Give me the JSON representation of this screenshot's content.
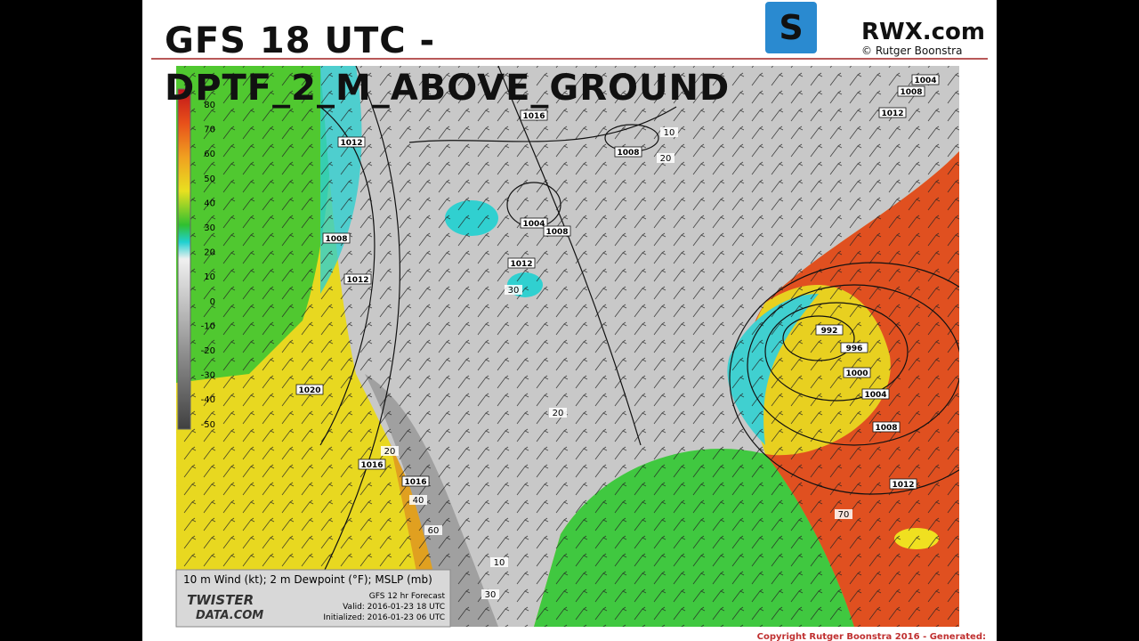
{
  "header": {
    "title_line1": "GFS 18 UTC -",
    "title_line2": "DPTF_2_M_ABOVE_GROUND",
    "logo_text": "RWX.com",
    "logo_credit": "© Rutger Boonstra"
  },
  "map": {
    "colorbar_labels": [
      "80",
      "70",
      "60",
      "50",
      "40",
      "30",
      "20",
      "10",
      "0",
      "-10",
      "-20",
      "-30",
      "-40",
      "-50"
    ],
    "isobar_labels": [
      "1016",
      "1012",
      "1008",
      "1012",
      "1004",
      "1008",
      "1012",
      "1008",
      "1004",
      "1008",
      "1012",
      "992",
      "996",
      "1000",
      "1004",
      "1008",
      "1012",
      "1020",
      "1016",
      "1016"
    ],
    "dewpoint_labels": [
      "30",
      "20",
      "20",
      "40",
      "60",
      "10",
      "30",
      "70",
      "10",
      "20"
    ],
    "legend": {
      "variables": "10 m Wind (kt); 2 m Dewpoint (°F); MSLP (mb)",
      "brand_line1": "TWISTER",
      "brand_line2": "DATA.COM",
      "forecast": "GFS 12 hr Forecast",
      "valid": "Valid: 2016-01-23 18 UTC",
      "initialized": "Initialized: 2016-01-23 06 UTC"
    }
  },
  "footer": {
    "copyright": "Copyright Rutger Boonstra 2016 - Generated:"
  }
}
